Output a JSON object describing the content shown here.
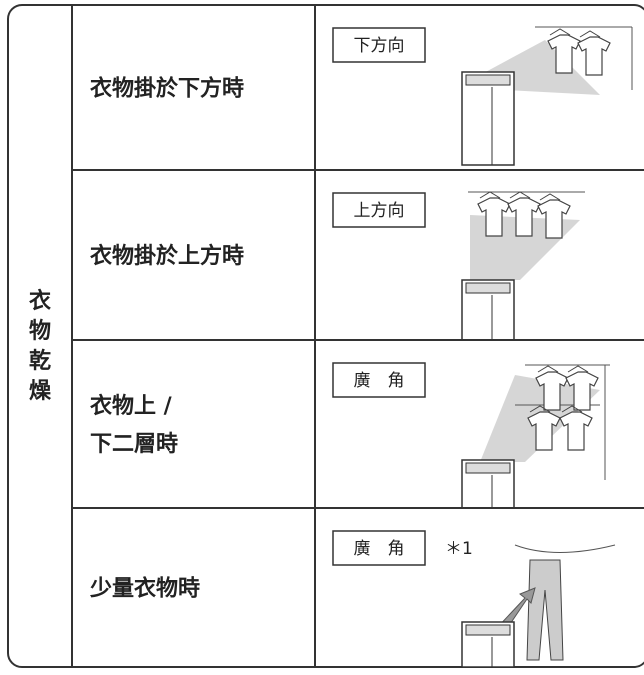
{
  "category": "衣物乾燥",
  "rows": [
    {
      "condition": [
        "衣物掛於下方時"
      ],
      "mode": "下方向"
    },
    {
      "condition": [
        "衣物掛於上方時"
      ],
      "mode": "上方向"
    },
    {
      "condition": [
        "衣物上 /",
        "下二層時"
      ],
      "mode": "廣　角"
    },
    {
      "condition": [
        "少量衣物時"
      ],
      "mode": "廣　角",
      "note": "＊1"
    }
  ]
}
